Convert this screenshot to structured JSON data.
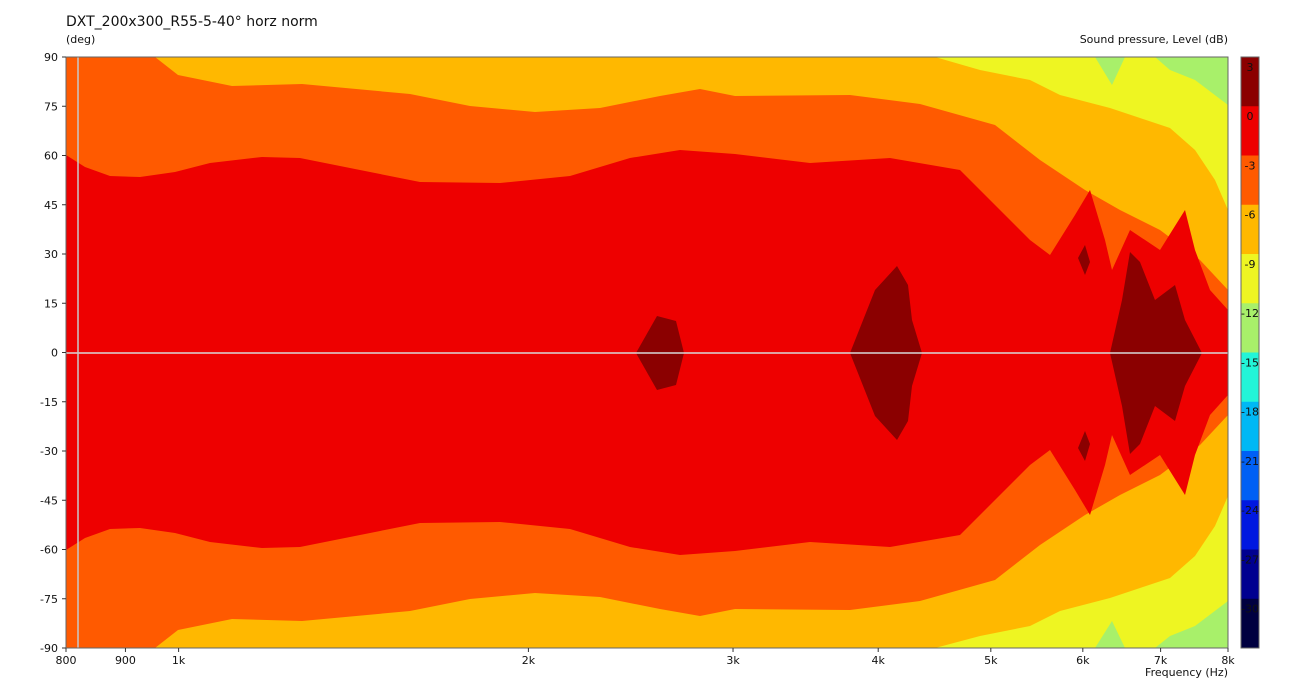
{
  "chart_data": {
    "type": "heatmap",
    "title": "DXT_200x300_R55-5-40° horz norm",
    "ylabel": "(deg)",
    "xlabel": "Frequency  (Hz)",
    "colorbar_label": "Sound pressure, Level  (dB)",
    "x_scale": "log",
    "xlim": [
      800,
      8000
    ],
    "ylim": [
      -90,
      90
    ],
    "x_ticks": [
      {
        "value": 800,
        "label": "800"
      },
      {
        "value": 900,
        "label": "900"
      },
      {
        "value": 1000,
        "label": "1k"
      },
      {
        "value": 2000,
        "label": "2k"
      },
      {
        "value": 3000,
        "label": "3k"
      },
      {
        "value": 4000,
        "label": "4k"
      },
      {
        "value": 5000,
        "label": "5k"
      },
      {
        "value": 6000,
        "label": "6k"
      },
      {
        "value": 7000,
        "label": "7k"
      },
      {
        "value": 8000,
        "label": "8k"
      }
    ],
    "y_ticks": [
      90,
      75,
      60,
      45,
      30,
      15,
      0,
      -15,
      -30,
      -45,
      -60,
      -75,
      -90
    ],
    "colorbar": {
      "levels": [
        3,
        0,
        -3,
        -6,
        -9,
        -12,
        -15,
        -18,
        -21,
        -24,
        -27,
        -30
      ],
      "colors": [
        "#8b0000",
        "#ee0000",
        "#ff5a00",
        "#ffb800",
        "#eef522",
        "#a8f06a",
        "#22f5d8",
        "#00b8f5",
        "#0060f5",
        "#0018e0",
        "#000090",
        "#000040"
      ]
    },
    "bands": [
      {
        "level_range": [
          -9,
          -6
        ],
        "color": "#ffb800",
        "upper_boundary": [
          [
            800,
            90
          ],
          [
            950,
            90
          ],
          [
            1000,
            85
          ],
          [
            1300,
            86
          ],
          [
            1600,
            82
          ],
          [
            2000,
            78
          ],
          [
            2400,
            80
          ],
          [
            2800,
            82
          ],
          [
            3200,
            79
          ],
          [
            3800,
            80
          ],
          [
            4300,
            88
          ],
          [
            4800,
            90
          ],
          [
            8000,
            90
          ]
        ]
      },
      {
        "level_range": [
          -6,
          -3
        ],
        "color": "#ff5a00",
        "upper_boundary": [
          [
            800,
            90
          ],
          [
            950,
            90
          ],
          [
            1000,
            85
          ],
          [
            1300,
            86
          ],
          [
            1600,
            82
          ],
          [
            2000,
            78
          ],
          [
            2400,
            80
          ],
          [
            2800,
            82
          ],
          [
            3200,
            79
          ],
          [
            3800,
            80
          ],
          [
            4300,
            88
          ],
          [
            4800,
            90
          ],
          [
            8000,
            90
          ]
        ]
      },
      {
        "level_range": [
          -3,
          0
        ],
        "color": "#ee0000",
        "upper_boundary": [
          [
            800,
            60
          ],
          [
            850,
            57
          ],
          [
            900,
            54
          ],
          [
            1000,
            55
          ],
          [
            1200,
            59
          ],
          [
            1500,
            58
          ],
          [
            1700,
            52
          ],
          [
            2100,
            53
          ],
          [
            2400,
            57
          ],
          [
            2800,
            62
          ],
          [
            3300,
            59
          ],
          [
            4000,
            60
          ],
          [
            4600,
            55
          ],
          [
            5200,
            45
          ],
          [
            5800,
            35
          ],
          [
            6500,
            28
          ],
          [
            7000,
            20
          ],
          [
            7500,
            8
          ],
          [
            7800,
            0
          ]
        ]
      },
      {
        "level_range": [
          0,
          3
        ],
        "color": "#8b0000",
        "regions": [
          {
            "center_hz": 2600,
            "halfwidth_deg": 11
          },
          {
            "center_hz": 4000,
            "halfwidth_deg": 27
          },
          {
            "center_hz": 6000,
            "halfwidth_deg": 32
          },
          {
            "center_hz": 6600,
            "halfwidth_deg": 31
          }
        ]
      },
      {
        "level_range": [
          -12,
          -9
        ],
        "color": "#eef522",
        "regions": [
          {
            "freq_range_hz": [
              5000,
              8000
            ],
            "angle_min_deg": 60
          }
        ]
      },
      {
        "level_range": [
          -15,
          -12
        ],
        "color": "#a8f06a",
        "regions": [
          {
            "freq_range_hz": [
              7200,
              8000
            ],
            "angle_min_deg": 78
          }
        ]
      }
    ],
    "grid": false,
    "markers": [
      {
        "type": "horizontal_line",
        "y": 0
      },
      {
        "type": "vertical_line",
        "x": 800
      }
    ]
  }
}
